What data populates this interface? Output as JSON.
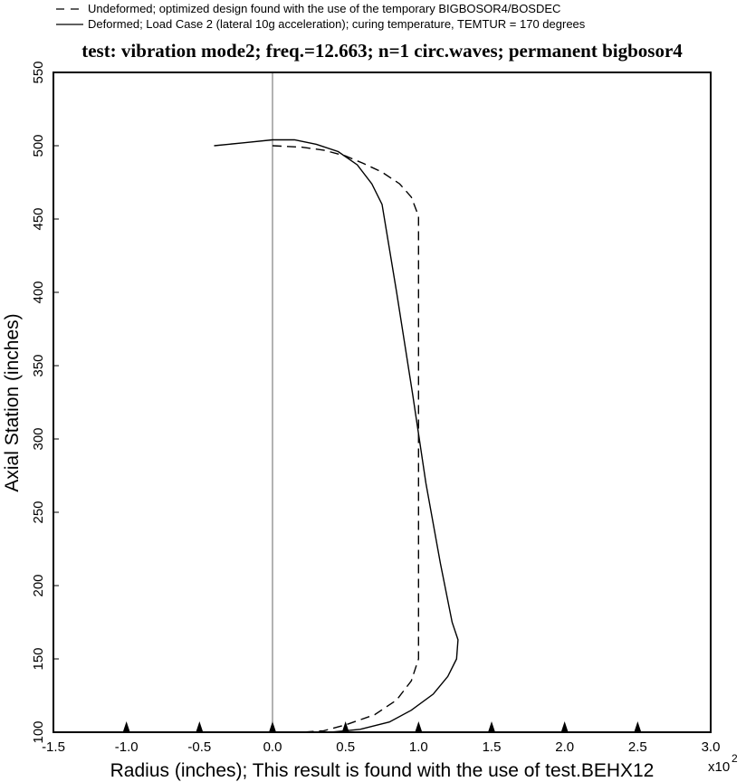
{
  "chart_data": {
    "type": "line",
    "title": "test: vibration mode2; freq.=12.663; n=1 circ.waves; permanent bigbosor4",
    "xlabel": "Radius (inches); This result is found with the use of test.BEHX12",
    "ylabel": "Axial Station (inches)",
    "x_multiplier_label": "x10",
    "x_multiplier_exponent": "2",
    "xlim": [
      -1.5,
      3.0
    ],
    "ylim": [
      100,
      550
    ],
    "x_tick_labels": [
      "-1.5",
      "-1.0",
      "-0.5",
      "0.0",
      "0.5",
      "1.0",
      "1.5",
      "2.0",
      "2.5",
      "3.0"
    ],
    "y_tick_labels": [
      "100",
      "150",
      "200",
      "250",
      "300",
      "350",
      "400",
      "450",
      "500",
      "550"
    ],
    "legend_position": "top-left, outside plot",
    "series": [
      {
        "name": "Undeformed; optimized design found with the use of the temporary BIGBOSOR4/BOSDEC",
        "style": "dashed",
        "points": [
          [
            0.0,
            500
          ],
          [
            0.2,
            499
          ],
          [
            0.35,
            497
          ],
          [
            0.5,
            493
          ],
          [
            0.62,
            488
          ],
          [
            0.75,
            482
          ],
          [
            0.87,
            474
          ],
          [
            0.95,
            465
          ],
          [
            1.0,
            452
          ],
          [
            1.0,
            400
          ],
          [
            1.0,
            300
          ],
          [
            1.0,
            200
          ],
          [
            1.0,
            150
          ],
          [
            0.95,
            135
          ],
          [
            0.85,
            122
          ],
          [
            0.7,
            112
          ],
          [
            0.5,
            105
          ],
          [
            0.35,
            101
          ],
          [
            0.2,
            100
          ]
        ]
      },
      {
        "name": "Deformed; Load Case 2 (lateral 10g acceleration); curing temperature, TEMTUR = 170 degrees",
        "style": "solid",
        "points": [
          [
            -0.4,
            500
          ],
          [
            -0.2,
            502
          ],
          [
            0.0,
            504
          ],
          [
            0.15,
            504
          ],
          [
            0.3,
            501
          ],
          [
            0.45,
            496
          ],
          [
            0.58,
            487
          ],
          [
            0.68,
            474
          ],
          [
            0.75,
            460
          ],
          [
            0.85,
            400
          ],
          [
            0.96,
            330
          ],
          [
            1.05,
            270
          ],
          [
            1.15,
            215
          ],
          [
            1.23,
            175
          ],
          [
            1.27,
            163
          ],
          [
            1.26,
            150
          ],
          [
            1.2,
            138
          ],
          [
            1.1,
            126
          ],
          [
            0.95,
            115
          ],
          [
            0.8,
            107
          ],
          [
            0.6,
            102
          ],
          [
            0.4,
            100
          ]
        ]
      }
    ],
    "reference_line_x": 0.0,
    "markers_x": [
      -1.0,
      -0.5,
      0.0,
      0.5,
      1.0,
      1.5,
      2.0,
      2.5
    ],
    "colors": {
      "line": "#000000",
      "background": "#ffffff"
    }
  }
}
